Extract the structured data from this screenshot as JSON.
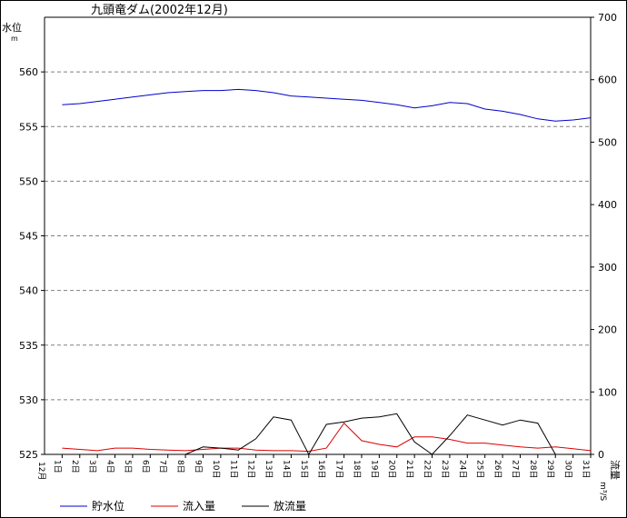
{
  "chart_data": {
    "type": "line",
    "title": "九頭竜ダム(2002年12月)",
    "left_axis": {
      "label_top": "水位",
      "label_unit": "m",
      "ylim": [
        525,
        565
      ],
      "ticks": [
        525,
        530,
        535,
        540,
        545,
        550,
        555,
        560
      ]
    },
    "right_axis": {
      "label_top": "流量",
      "label_unit": "m³/S",
      "ylim": [
        0,
        700
      ],
      "ticks": [
        0,
        100,
        200,
        300,
        400,
        500,
        600,
        700
      ]
    },
    "x_first_label": "12月",
    "x": [
      "1日",
      "2日",
      "3日",
      "4日",
      "5日",
      "6日",
      "7日",
      "8日",
      "9日",
      "10日",
      "11日",
      "12日",
      "13日",
      "14日",
      "15日",
      "16日",
      "17日",
      "18日",
      "19日",
      "20日",
      "21日",
      "22日",
      "23日",
      "24日",
      "25日",
      "26日",
      "27日",
      "28日",
      "29日",
      "30日",
      "31日"
    ],
    "grid": true,
    "legend_position": "bottom",
    "series": [
      {
        "name": "貯水位",
        "axis": "left",
        "color": "#0000cc",
        "values": [
          557.0,
          557.1,
          557.3,
          557.5,
          557.7,
          557.9,
          558.1,
          558.2,
          558.3,
          558.3,
          558.4,
          558.3,
          558.1,
          557.8,
          557.7,
          557.6,
          557.5,
          557.4,
          557.2,
          557.0,
          556.7,
          556.9,
          557.2,
          557.1,
          556.6,
          556.4,
          556.1,
          555.7,
          555.5,
          555.6,
          555.8
        ]
      },
      {
        "name": "流入量",
        "axis": "right",
        "color": "#dd0000",
        "values": [
          10,
          8,
          6,
          10,
          10,
          8,
          7,
          6,
          8,
          10,
          10,
          7,
          6,
          6,
          5,
          10,
          50,
          22,
          16,
          12,
          28,
          28,
          24,
          18,
          18,
          15,
          12,
          10,
          12,
          9,
          6
        ]
      },
      {
        "name": "放流量",
        "axis": "right",
        "color": "#000000",
        "values": [
          null,
          null,
          null,
          null,
          null,
          null,
          null,
          0,
          12,
          10,
          7,
          25,
          60,
          55,
          0,
          48,
          52,
          58,
          60,
          65,
          20,
          0,
          30,
          63,
          55,
          47,
          55,
          50,
          0,
          null,
          null
        ]
      }
    ]
  }
}
